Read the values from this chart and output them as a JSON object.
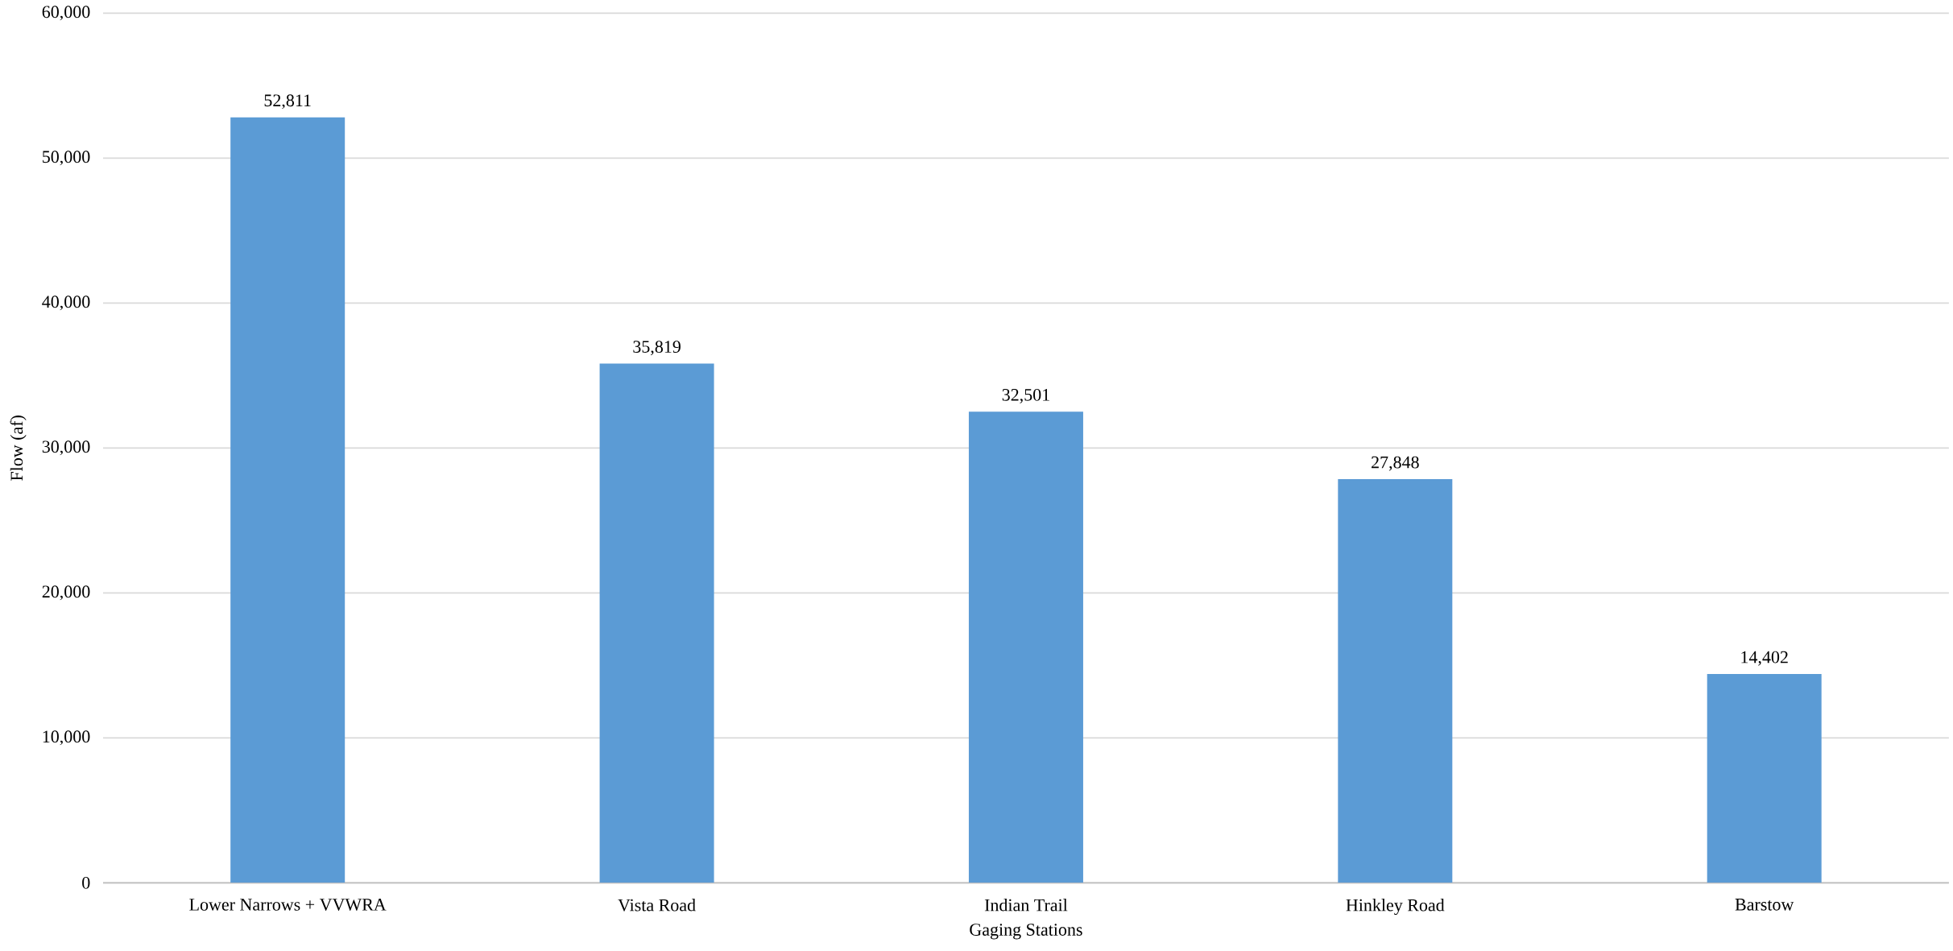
{
  "chart_data": {
    "type": "bar",
    "xlabel": "Gaging Stations",
    "ylabel": "Flow (af)",
    "categories": [
      "Lower Narrows + VVWRA",
      "Vista Road",
      "Indian Trail",
      "Hinkley Road",
      "Barstow"
    ],
    "values": [
      52811,
      35819,
      32501,
      27848,
      14402
    ],
    "value_labels": [
      "52,811",
      "35,819",
      "32,501",
      "27,848",
      "14,402"
    ],
    "color": "#5b9bd5",
    "ylim": [
      0,
      60000
    ],
    "yticks": [
      {
        "value": 0,
        "label": "0"
      },
      {
        "value": 10000,
        "label": "10,000"
      },
      {
        "value": 20000,
        "label": "20,000"
      },
      {
        "value": 30000,
        "label": "30,000"
      },
      {
        "value": 40000,
        "label": "40,000"
      },
      {
        "value": 50000,
        "label": "50,000"
      },
      {
        "value": 60000,
        "label": "60,000"
      }
    ],
    "grid": "y"
  }
}
